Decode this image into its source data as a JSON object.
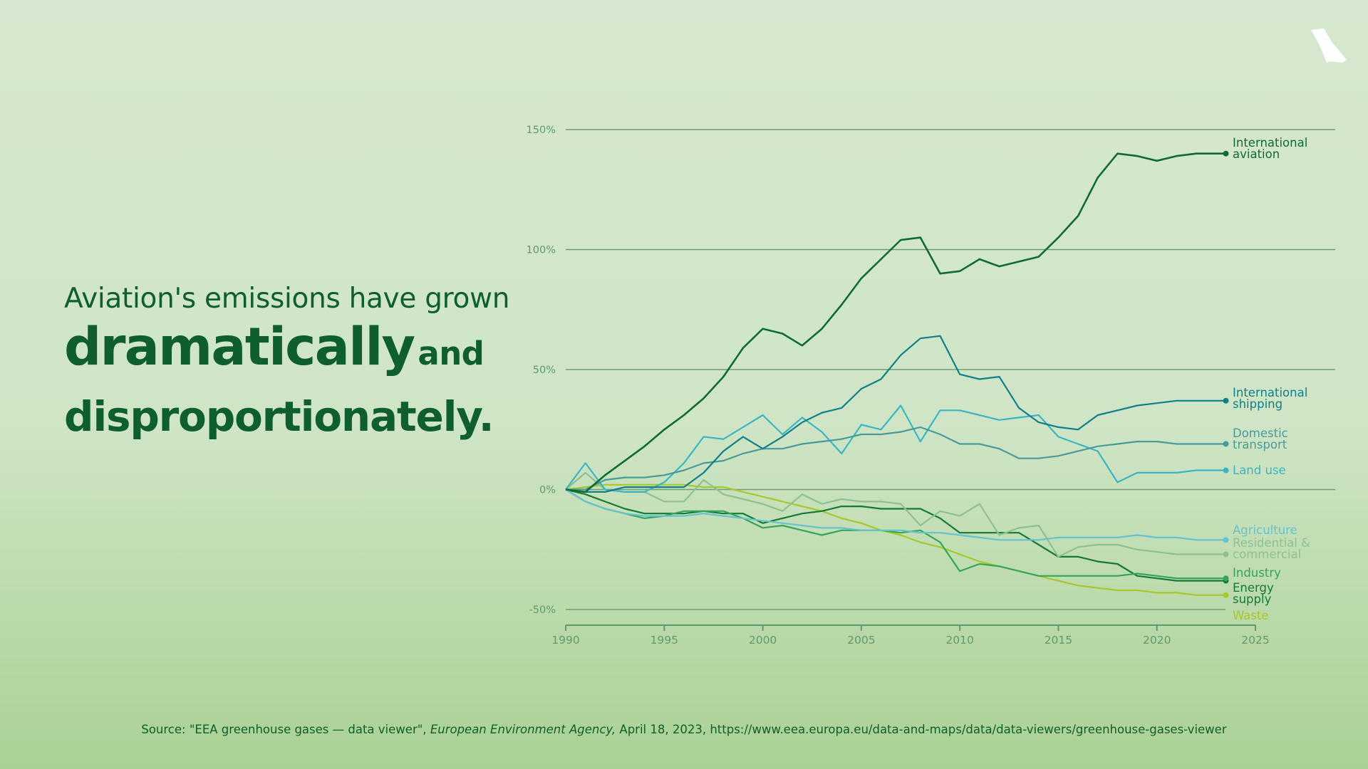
{
  "headline": {
    "line1": "Aviation's emissions have grown",
    "emphasis": "dramatically",
    "connector": "and",
    "line3": "disproportionately."
  },
  "source": {
    "prefix": "Source: \"EEA greenhouse gases — data viewer\", ",
    "publisher": "European Environment Agency,",
    "suffix": " April 18, 2023, https://www.eea.europa.eu/data-and-maps/data/data-viewers/greenhouse-gases-viewer"
  },
  "logo": {
    "icon": "plane-logo-icon"
  },
  "chart_data": {
    "type": "line",
    "xlim": [
      1990,
      2025
    ],
    "ylim": [
      -50,
      150
    ],
    "x_ticks": [
      1990,
      1995,
      2000,
      2005,
      2010,
      2015,
      2020,
      2025
    ],
    "x_tick_labels": [
      "1990",
      "1995",
      "2000",
      "2005",
      "2010",
      "2015",
      "2020",
      "2025"
    ],
    "y_ticks": [
      150,
      100,
      50,
      0,
      -50
    ],
    "y_tick_labels": [
      "150%",
      "100%",
      "50%",
      "0%",
      "-50%"
    ],
    "grid": true,
    "legend": "direct labels at right end of each line",
    "x": [
      1990,
      1991,
      1992,
      1993,
      1994,
      1995,
      1996,
      1997,
      1998,
      1999,
      2000,
      2001,
      2002,
      2003,
      2004,
      2005,
      2006,
      2007,
      2008,
      2009,
      2010,
      2011,
      2012,
      2013,
      2014,
      2015,
      2016,
      2017,
      2018,
      2019,
      2020,
      2021,
      2022,
      2023
    ],
    "series": [
      {
        "name": "International aviation",
        "label_lines": [
          "International",
          "aviation"
        ],
        "color": "#0f6b33",
        "values": [
          0,
          -1,
          6,
          12,
          18,
          25,
          31,
          38,
          47,
          59,
          67,
          65,
          60,
          67,
          77,
          88,
          96,
          104,
          105,
          90,
          91,
          96,
          93,
          95,
          97,
          105,
          114,
          130,
          140,
          139,
          137,
          139,
          140,
          140
        ]
      },
      {
        "name": "International shipping",
        "label_lines": [
          "International",
          "shipping"
        ],
        "color": "#0f7f8a",
        "values": [
          0,
          -1,
          -1,
          1,
          1,
          1,
          1,
          7,
          16,
          22,
          17,
          22,
          28,
          32,
          34,
          42,
          46,
          56,
          63,
          64,
          48,
          46,
          47,
          34,
          28,
          26,
          25,
          31,
          33,
          35,
          36,
          37,
          37,
          37
        ]
      },
      {
        "name": "Domestic transport",
        "label_lines": [
          "Domestic",
          "transport"
        ],
        "color": "#4a9a9a",
        "values": [
          0,
          0,
          4,
          5,
          5,
          6,
          8,
          11,
          12,
          15,
          17,
          17,
          19,
          20,
          21,
          23,
          23,
          24,
          26,
          23,
          19,
          19,
          17,
          13,
          13,
          14,
          16,
          18,
          19,
          20,
          20,
          19,
          19,
          19
        ]
      },
      {
        "name": "Land use",
        "label_lines": [
          "Land use"
        ],
        "color": "#3bb5c6",
        "values": [
          0,
          11,
          0,
          -1,
          -1,
          3,
          11,
          22,
          21,
          26,
          31,
          23,
          30,
          24,
          15,
          27,
          25,
          35,
          20,
          33,
          33,
          31,
          29,
          30,
          31,
          22,
          19,
          16,
          3,
          7,
          7,
          7,
          8,
          8
        ]
      },
      {
        "name": "Agriculture",
        "label_lines": [
          "Agriculture"
        ],
        "color": "#66c2cc",
        "values": [
          0,
          -5,
          -8,
          -10,
          -11,
          -11,
          -11,
          -10,
          -11,
          -12,
          -13,
          -14,
          -15,
          -16,
          -16,
          -17,
          -17,
          -17,
          -18,
          -18,
          -19,
          -20,
          -21,
          -21,
          -21,
          -20,
          -20,
          -20,
          -20,
          -19,
          -20,
          -20,
          -21,
          -21
        ]
      },
      {
        "name": "Residential & commercial",
        "label_lines": [
          "Residential &",
          "commercial"
        ],
        "color": "#8fbf95",
        "values": [
          0,
          7,
          0,
          -1,
          -1,
          -5,
          -5,
          4,
          -2,
          -4,
          -6,
          -9,
          -2,
          -6,
          -4,
          -5,
          -5,
          -6,
          -15,
          -9,
          -11,
          -6,
          -19,
          -16,
          -15,
          -28,
          -24,
          -23,
          -23,
          -25,
          -26,
          -27,
          -27,
          -27
        ]
      },
      {
        "name": "Industry",
        "label_lines": [
          "Industry"
        ],
        "color": "#35a55a",
        "values": [
          0,
          -5,
          -8,
          -10,
          -12,
          -11,
          -9,
          -9,
          -9,
          -12,
          -16,
          -15,
          -17,
          -19,
          -17,
          -17,
          -17,
          -18,
          -17,
          -22,
          -34,
          -31,
          -32,
          -34,
          -36,
          -36,
          -36,
          -36,
          -36,
          -35,
          -36,
          -37,
          -37,
          -37
        ]
      },
      {
        "name": "Energy supply",
        "label_lines": [
          "Energy",
          "supply"
        ],
        "color": "#157a34",
        "values": [
          0,
          -2,
          -5,
          -8,
          -10,
          -10,
          -10,
          -9,
          -10,
          -10,
          -14,
          -12,
          -10,
          -9,
          -7,
          -7,
          -8,
          -8,
          -8,
          -12,
          -18,
          -18,
          -18,
          -18,
          -23,
          -28,
          -28,
          -30,
          -31,
          -36,
          -37,
          -38,
          -38,
          -38
        ]
      },
      {
        "name": "Waste",
        "label_lines": [
          "Waste"
        ],
        "color": "#a7c72a",
        "values": [
          0,
          1,
          2,
          2,
          2,
          2,
          2,
          1,
          1,
          -1,
          -3,
          -5,
          -7,
          -9,
          -12,
          -14,
          -17,
          -19,
          -22,
          -24,
          -27,
          -30,
          -32,
          -34,
          -36,
          -38,
          -40,
          -41,
          -42,
          -42,
          -43,
          -43,
          -44,
          -44
        ]
      }
    ]
  }
}
